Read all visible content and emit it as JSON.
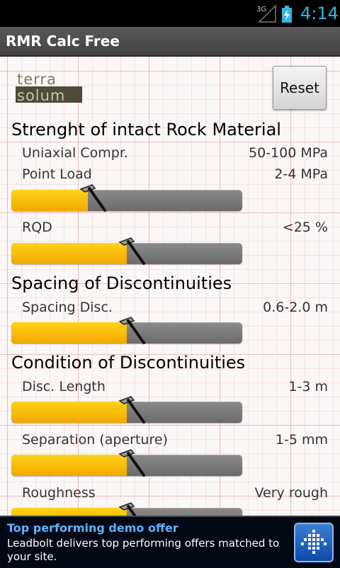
{
  "status_bar": {
    "network": "3G",
    "time": "4:14",
    "accent_color": "#33b5e5"
  },
  "app": {
    "title": "RMR Calc Free"
  },
  "header": {
    "logo_text_top": "terra",
    "logo_text_bottom": "solum",
    "reset_label": "Reset"
  },
  "sections": {
    "strength": {
      "title": "Strenght of intact Rock Material",
      "uniaxial_label": "Uniaxial Compr.",
      "uniaxial_value": "50-100 MPa",
      "point_load_label": "Point Load",
      "point_load_value": "2-4 MPa",
      "slider_value": 0.33,
      "rqd_label": "RQD",
      "rqd_value": "<25 %",
      "rqd_slider_value": 0.5
    },
    "spacing": {
      "title": "Spacing of Discontinuities",
      "spacing_label": "Spacing Disc.",
      "spacing_value": "0.6-2.0 m",
      "slider_value": 0.5
    },
    "condition": {
      "title": "Condition of Discontinuities",
      "length_label": "Disc. Length",
      "length_value": "1-3 m",
      "length_slider_value": 0.5,
      "separation_label": "Separation (aperture)",
      "separation_value": "1-5 mm",
      "separation_slider_value": 0.5,
      "roughness_label": "Roughness",
      "roughness_value": "Very rough",
      "roughness_slider_value": 0.5
    }
  },
  "ad": {
    "title": "Top performing demo offer",
    "body": "Leadbolt delivers top performing offers matched to your site.",
    "icon": "leadbolt-icon"
  },
  "colors": {
    "slider_fill": "#f7b900",
    "slider_track": "#7a7a7a",
    "grid_line": "#e696a0",
    "ad_title": "#5fb3ff"
  }
}
